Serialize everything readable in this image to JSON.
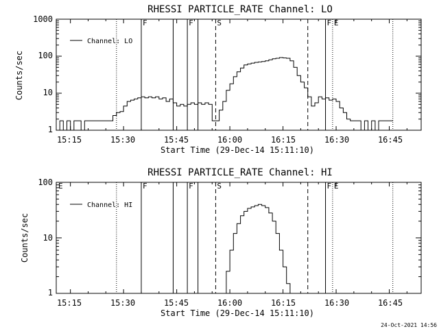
{
  "footer": {
    "timestamp": "24-Oct-2021 14:56"
  },
  "chart_data": [
    {
      "type": "line",
      "title": "RHESSI PARTICLE_RATE Channel: LO",
      "xlabel": "Start Time (29-Dec-14 15:11:10)",
      "ylabel": "Counts/sec",
      "yscale": "log",
      "xlim": [
        "15:11",
        "16:54"
      ],
      "ylim": [
        1,
        1000
      ],
      "x_tick_labels": [
        "15:15",
        "15:30",
        "15:45",
        "16:00",
        "16:15",
        "16:30",
        "16:45"
      ],
      "y_tick_labels": [
        "1",
        "10",
        "100",
        "1000"
      ],
      "legend": {
        "label": "Channel: LO",
        "position": "top-left"
      },
      "event_markers": [
        {
          "time": "15:28",
          "label": "",
          "style": "dotted"
        },
        {
          "time": "15:35",
          "label": "F",
          "style": "solid"
        },
        {
          "time": "15:44",
          "label": "",
          "style": "solid"
        },
        {
          "time": "15:48",
          "label": "F",
          "style": "solid"
        },
        {
          "time": "15:51",
          "label": "",
          "style": "solid"
        },
        {
          "time": "15:56",
          "label": "S",
          "style": "dashed"
        },
        {
          "time": "16:22",
          "label": "",
          "style": "dashed"
        },
        {
          "time": "16:27",
          "label": "F",
          "style": "solid"
        },
        {
          "time": "16:29",
          "label": "E",
          "style": "dotted"
        },
        {
          "time": "16:46",
          "label": "",
          "style": "dotted"
        }
      ],
      "series": [
        {
          "name": "Channel: LO",
          "x": [
            "15:11",
            "15:12",
            "15:13",
            "15:14",
            "15:15",
            "15:16",
            "15:17",
            "15:18",
            "15:19",
            "15:20",
            "15:21",
            "15:22",
            "15:23",
            "15:24",
            "15:25",
            "15:26",
            "15:27",
            "15:28",
            "15:29",
            "15:30",
            "15:31",
            "15:32",
            "15:33",
            "15:34",
            "15:35",
            "15:36",
            "15:37",
            "15:38",
            "15:39",
            "15:40",
            "15:41",
            "15:42",
            "15:43",
            "15:44",
            "15:45",
            "15:46",
            "15:47",
            "15:48",
            "15:49",
            "15:50",
            "15:51",
            "15:52",
            "15:53",
            "15:54",
            "15:55",
            "15:56",
            "15:57",
            "15:58",
            "15:59",
            "16:00",
            "16:01",
            "16:02",
            "16:03",
            "16:04",
            "16:05",
            "16:06",
            "16:07",
            "16:08",
            "16:09",
            "16:10",
            "16:11",
            "16:12",
            "16:13",
            "16:14",
            "16:15",
            "16:16",
            "16:17",
            "16:18",
            "16:19",
            "16:20",
            "16:21",
            "16:22",
            "16:23",
            "16:24",
            "16:25",
            "16:26",
            "16:27",
            "16:28",
            "16:29",
            "16:30",
            "16:31",
            "16:32",
            "16:33",
            "16:34",
            "16:35",
            "16:36",
            "16:37",
            "16:38",
            "16:39",
            "16:40",
            "16:41",
            "16:42",
            "16:43",
            "16:44",
            "16:45",
            "16:46"
          ],
          "y": [
            1,
            1.8,
            1,
            1.8,
            1,
            1.8,
            1.8,
            1,
            1.8,
            1.8,
            1.8,
            1.8,
            1.8,
            1.8,
            1.8,
            1.8,
            2.5,
            3,
            3.2,
            4.5,
            6,
            6.5,
            7,
            7.5,
            8,
            7.5,
            8,
            7.5,
            8,
            7,
            7.5,
            6,
            7,
            5.5,
            4.5,
            5,
            4.5,
            5,
            5.5,
            5,
            5.5,
            5,
            5.5,
            5,
            1.8,
            1.8,
            3.5,
            6,
            12,
            18,
            28,
            38,
            48,
            58,
            62,
            65,
            68,
            70,
            72,
            75,
            80,
            85,
            88,
            92,
            90,
            88,
            75,
            50,
            30,
            20,
            14,
            8,
            4.5,
            5.5,
            8,
            7,
            7.5,
            6.5,
            7,
            6,
            4,
            3,
            2,
            1.8,
            1.8,
            1.8,
            1,
            1.8,
            1,
            1.8,
            1,
            1.8,
            1.8,
            1.8,
            1.8,
            1.8
          ]
        }
      ]
    },
    {
      "type": "line",
      "title": "RHESSI PARTICLE_RATE Channel: HI",
      "xlabel": "Start Time (29-Dec-14 15:11:10)",
      "ylabel": "Counts/sec",
      "yscale": "log",
      "xlim": [
        "15:11",
        "16:54"
      ],
      "ylim": [
        1,
        100
      ],
      "x_tick_labels": [
        "15:15",
        "15:30",
        "15:45",
        "16:00",
        "16:15",
        "16:30",
        "16:45"
      ],
      "y_tick_labels": [
        "1",
        "10",
        "100"
      ],
      "legend": {
        "label": "Channel: HI",
        "position": "top-left"
      },
      "corner_label": "E",
      "event_markers": [
        {
          "time": "15:28",
          "label": "",
          "style": "dotted"
        },
        {
          "time": "15:35",
          "label": "F",
          "style": "solid"
        },
        {
          "time": "15:44",
          "label": "",
          "style": "solid"
        },
        {
          "time": "15:48",
          "label": "F",
          "style": "solid"
        },
        {
          "time": "15:51",
          "label": "",
          "style": "solid"
        },
        {
          "time": "15:56",
          "label": "S",
          "style": "dashed"
        },
        {
          "time": "16:22",
          "label": "",
          "style": "dashed"
        },
        {
          "time": "16:27",
          "label": "F",
          "style": "solid"
        },
        {
          "time": "16:29",
          "label": "E",
          "style": "dotted"
        },
        {
          "time": "16:46",
          "label": "",
          "style": "dotted"
        }
      ],
      "series": [
        {
          "name": "Channel: HI",
          "x": [
            "15:58",
            "15:59",
            "16:00",
            "16:01",
            "16:02",
            "16:03",
            "16:04",
            "16:05",
            "16:06",
            "16:07",
            "16:08",
            "16:09",
            "16:10",
            "16:11",
            "16:12",
            "16:13",
            "16:14",
            "16:15",
            "16:16",
            "16:17"
          ],
          "y": [
            1,
            2.5,
            6,
            12,
            18,
            25,
            30,
            34,
            36,
            38,
            40,
            38,
            35,
            28,
            20,
            12,
            6,
            3,
            1.5,
            1
          ]
        }
      ]
    }
  ]
}
